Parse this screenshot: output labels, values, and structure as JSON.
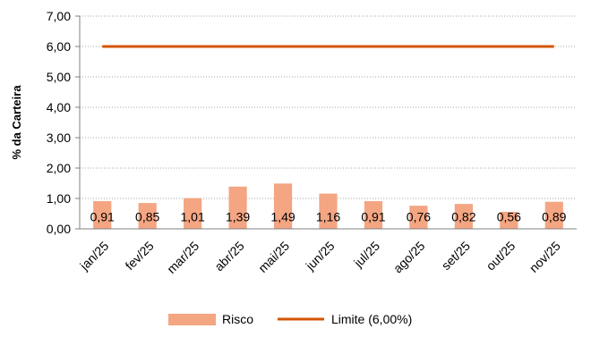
{
  "chart_data": {
    "type": "bar",
    "categories": [
      "jan/25",
      "fev/25",
      "mar/25",
      "abr/25",
      "mai/25",
      "jun/25",
      "jul/25",
      "ago/25",
      "set/25",
      "out/25",
      "nov/25"
    ],
    "series": [
      {
        "name": "Risco",
        "kind": "bar",
        "color": "#F4A582",
        "values": [
          0.91,
          0.85,
          1.01,
          1.39,
          1.49,
          1.16,
          0.91,
          0.76,
          0.82,
          0.56,
          0.89
        ],
        "value_labels": [
          "0,91",
          "0,85",
          "1,01",
          "1,39",
          "1,49",
          "1,16",
          "0,91",
          "0,76",
          "0,82",
          "0,56",
          "0,89"
        ]
      },
      {
        "name": "Limite (6,00%)",
        "kind": "line",
        "color": "#D45500",
        "values": [
          6,
          6,
          6,
          6,
          6,
          6,
          6,
          6,
          6,
          6,
          6
        ]
      }
    ],
    "ylabel": "% da Carteira",
    "xlabel": "",
    "ylim": [
      0,
      7
    ],
    "yticks": [
      0,
      1,
      2,
      3,
      4,
      5,
      6,
      7
    ],
    "ytick_labels": [
      "0,00",
      "1,00",
      "2,00",
      "3,00",
      "4,00",
      "5,00",
      "6,00",
      "7,00"
    ],
    "grid": "horizontal-dotted",
    "legend_position": "bottom"
  }
}
